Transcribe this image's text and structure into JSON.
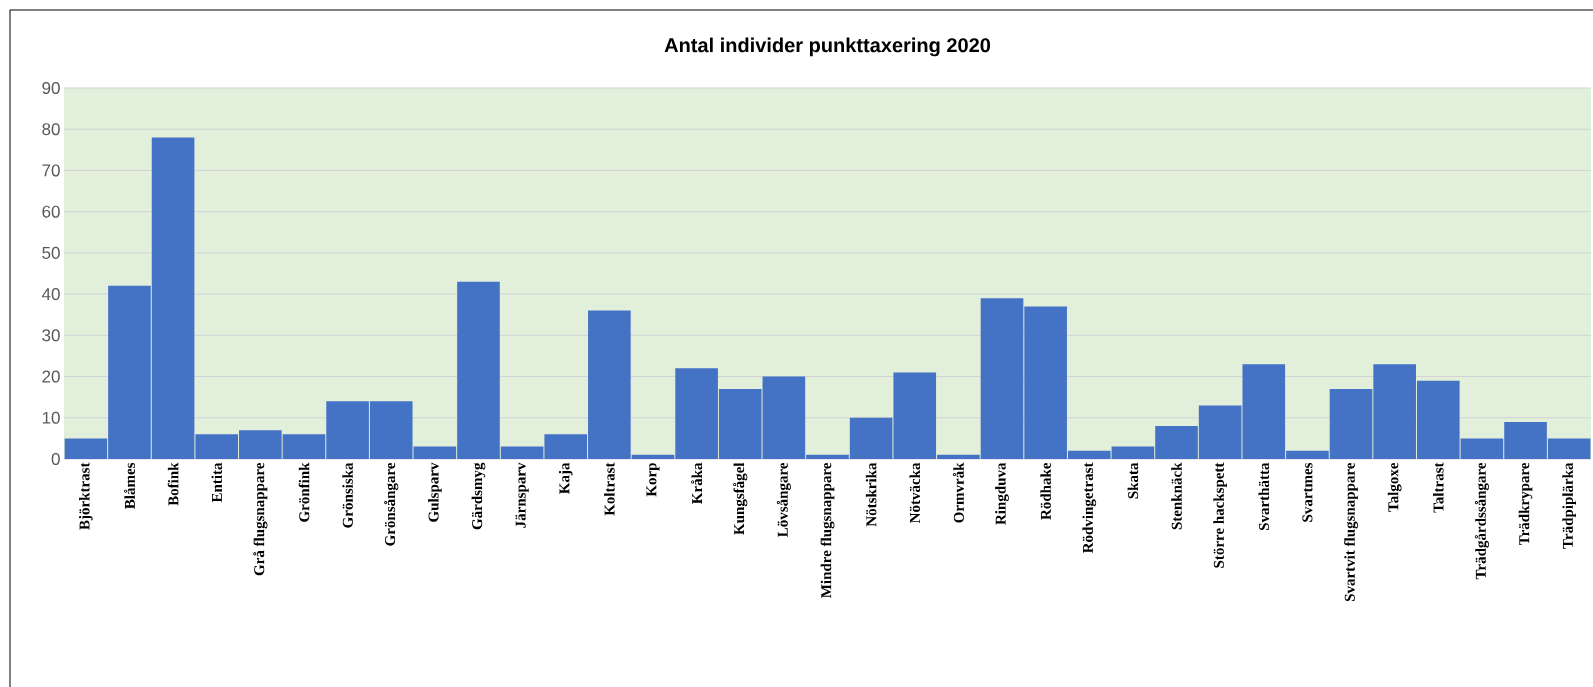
{
  "chart_data": {
    "type": "bar",
    "title": "Antal individer punkttaxering 2020",
    "categories": [
      "Björktrast",
      "Blåmes",
      "Bofink",
      "Entita",
      "Grå flugsnappare",
      "Grönfink",
      "Grönsiska",
      "Grönsångare",
      "Gulsparv",
      "Gärdsmyg",
      "Järnsparv",
      "Kaja",
      "Koltrast",
      "Korp",
      "Kråka",
      "Kungsfågel",
      "Lövsångare",
      "Mindre flugsnappare",
      "Nötskrika",
      "Nötväcka",
      "Ormvråk",
      "Ringduva",
      "Rödhake",
      "Rödvingetrast",
      "Skata",
      "Stenknäck",
      "Större hackspett",
      "Svarthätta",
      "Svartmes",
      "Svartvit flugsnappare",
      "Talgoxe",
      "Taltrast",
      "Trädgårdssångare",
      "Trädkrypare",
      "Trädpiplärka"
    ],
    "values": [
      5,
      42,
      78,
      6,
      7,
      6,
      14,
      14,
      3,
      43,
      3,
      6,
      36,
      1,
      22,
      17,
      20,
      1,
      10,
      21,
      1,
      39,
      37,
      2,
      3,
      8,
      13,
      23,
      2,
      17,
      23,
      19,
      5,
      9,
      5
    ],
    "color": "#4472c4",
    "ylim": [
      0,
      90
    ],
    "yticks": [
      0,
      10,
      20,
      30,
      40,
      50,
      60,
      70,
      80,
      90
    ],
    "grid": "y"
  }
}
